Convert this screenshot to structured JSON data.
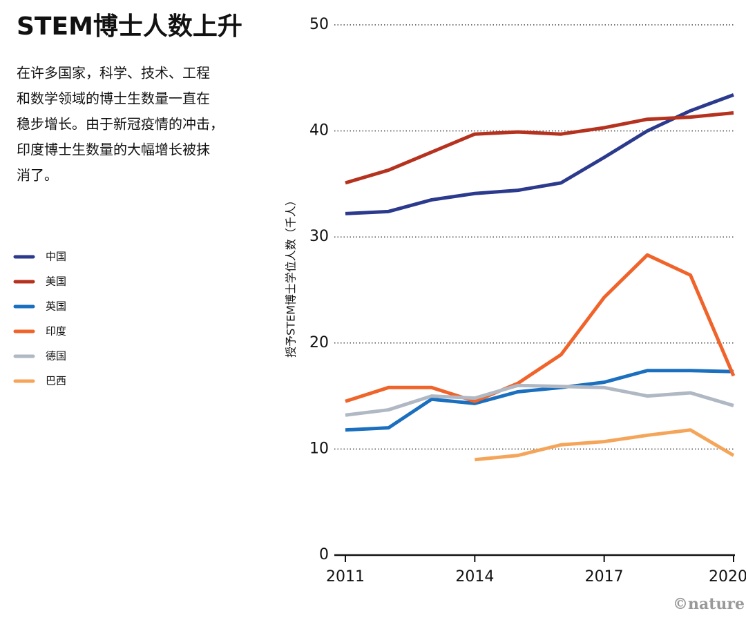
{
  "chart_data": {
    "type": "line",
    "title": "STEM博士人数上升",
    "subtitle_lines": [
      "在许多国家，科学、技术、工程",
      "和数学领域的博士生数量一直在",
      "稳步增长。由于新冠疫情的冲击，",
      "印度博士生数量的大幅增长被抹",
      "消了。"
    ],
    "y_label": "授予STEM博士学位人数（千人）",
    "credit": "©nature",
    "x": [
      2011,
      2012,
      2013,
      2014,
      2015,
      2016,
      2017,
      2018,
      2019,
      2020
    ],
    "xlim": [
      2011,
      2020
    ],
    "xticks": [
      2011,
      2014,
      2017,
      2020
    ],
    "ylim": [
      0,
      50
    ],
    "yticks": [
      0,
      10,
      20,
      30,
      40,
      50
    ],
    "grid": true,
    "series": [
      {
        "name": "中国",
        "color": "#2b3a8c",
        "values": [
          32.2,
          32.4,
          33.5,
          34.1,
          34.4,
          35.1,
          37.5,
          40.0,
          41.9,
          43.4
        ]
      },
      {
        "name": "美国",
        "color": "#b5321f",
        "values": [
          35.1,
          36.3,
          38.0,
          39.7,
          39.9,
          39.7,
          40.3,
          41.1,
          41.3,
          41.7
        ]
      },
      {
        "name": "英国",
        "color": "#1a6fbf",
        "values": [
          11.8,
          12.0,
          14.7,
          14.3,
          15.4,
          15.8,
          16.3,
          17.4,
          17.4,
          17.3
        ]
      },
      {
        "name": "印度",
        "color": "#f0632a",
        "values": [
          14.5,
          15.8,
          15.8,
          14.5,
          16.2,
          18.9,
          24.3,
          28.3,
          26.4,
          16.9
        ]
      },
      {
        "name": "德国",
        "color": "#b0b8c4",
        "values": [
          13.2,
          13.7,
          15.0,
          14.8,
          16.0,
          15.9,
          15.8,
          15.0,
          15.3,
          14.1
        ]
      },
      {
        "name": "巴西",
        "color": "#f5a55a",
        "values": [
          null,
          null,
          null,
          9.0,
          9.4,
          10.4,
          10.7,
          11.3,
          11.8,
          9.4
        ]
      }
    ]
  }
}
